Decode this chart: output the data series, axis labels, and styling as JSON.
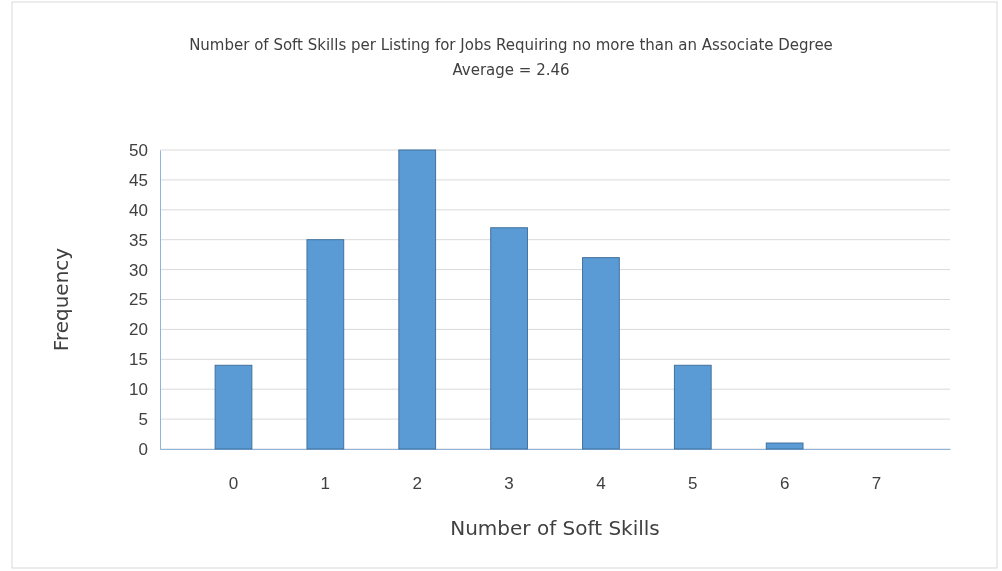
{
  "chart_data": {
    "type": "bar",
    "title": "Number of Soft Skills per Listing for Jobs Requiring no more than an Associate Degree",
    "subtitle": "Average = 2.46",
    "xlabel": "Number of Soft Skills",
    "ylabel": "Frequency",
    "categories": [
      "0",
      "1",
      "2",
      "3",
      "4",
      "5",
      "6",
      "7"
    ],
    "values": [
      14,
      35,
      50,
      37,
      32,
      14,
      1,
      0
    ],
    "color": "#5b9bd5",
    "ylim": [
      0,
      50
    ],
    "yticks": [
      0,
      5,
      10,
      15,
      20,
      25,
      30,
      35,
      40,
      45,
      50
    ],
    "grid": "y"
  }
}
